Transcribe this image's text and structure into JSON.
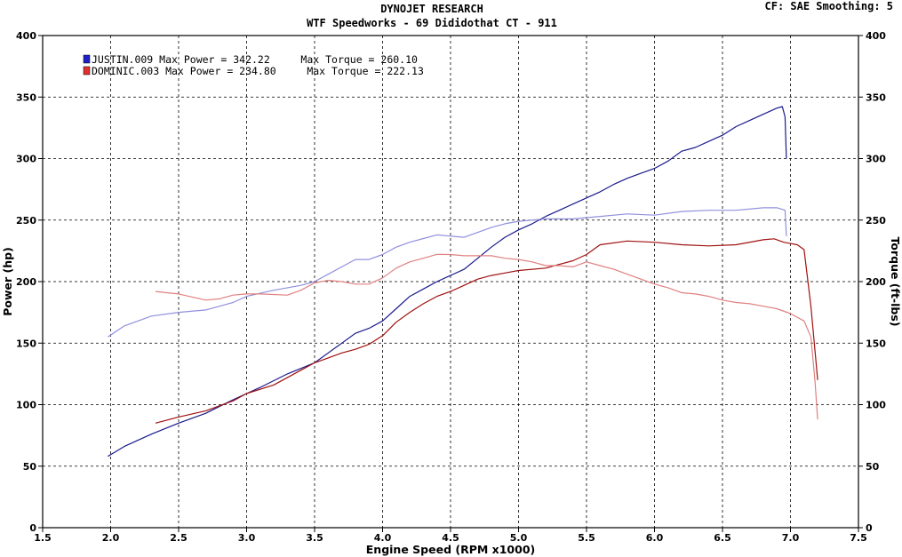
{
  "chart_data": {
    "type": "line",
    "title": "DYNOJET RESEARCH",
    "subtitle": "WTF Speedworks - 69 Dididothat CT - 911",
    "corner_info": "CF: SAE  Smoothing: 5",
    "xlabel": "Engine Speed (RPM x1000)",
    "ylabel": "Power (hp)",
    "y2label": "Torque (ft-lbs)",
    "xlim": [
      1.5,
      7.5
    ],
    "ylim": [
      0,
      400
    ],
    "y2lim": [
      0,
      400
    ],
    "x_ticks": [
      "1.5",
      "2.0",
      "2.5",
      "3.0",
      "3.5",
      "4.0",
      "4.5",
      "5.0",
      "5.5",
      "6.0",
      "6.5",
      "7.0",
      "7.5"
    ],
    "y_ticks": [
      "0",
      "50",
      "100",
      "150",
      "200",
      "250",
      "300",
      "350",
      "400"
    ],
    "grid": true,
    "legend_position": "top-left",
    "legend": [
      {
        "text": "JUSTIN.009 Max Power = 342.22     Max Torque = 260.10",
        "color": "#2020c8"
      },
      {
        "text": "DOMINIC.003 Max Power = 234.80     Max Torque = 222.13",
        "color": "#e03030"
      }
    ],
    "series": [
      {
        "run": "JUSTIN.009",
        "measure": "power",
        "color": "#1a1a8c",
        "points": [
          [
            1.98,
            58
          ],
          [
            2.1,
            66
          ],
          [
            2.3,
            76
          ],
          [
            2.5,
            85
          ],
          [
            2.7,
            93
          ],
          [
            2.9,
            104
          ],
          [
            3.0,
            109
          ],
          [
            3.1,
            114
          ],
          [
            3.3,
            125
          ],
          [
            3.5,
            134
          ],
          [
            3.6,
            142
          ],
          [
            3.7,
            150
          ],
          [
            3.8,
            158
          ],
          [
            3.9,
            162
          ],
          [
            4.0,
            168
          ],
          [
            4.1,
            178
          ],
          [
            4.2,
            188
          ],
          [
            4.3,
            194
          ],
          [
            4.4,
            200
          ],
          [
            4.5,
            205
          ],
          [
            4.6,
            210
          ],
          [
            4.7,
            219
          ],
          [
            4.8,
            228
          ],
          [
            4.9,
            236
          ],
          [
            5.0,
            242
          ],
          [
            5.1,
            247
          ],
          [
            5.2,
            253
          ],
          [
            5.3,
            258
          ],
          [
            5.4,
            263
          ],
          [
            5.5,
            268
          ],
          [
            5.6,
            273
          ],
          [
            5.7,
            279
          ],
          [
            5.8,
            284
          ],
          [
            5.9,
            288
          ],
          [
            6.0,
            292
          ],
          [
            6.1,
            298
          ],
          [
            6.2,
            306
          ],
          [
            6.3,
            309
          ],
          [
            6.4,
            314
          ],
          [
            6.5,
            319
          ],
          [
            6.6,
            326
          ],
          [
            6.7,
            331
          ],
          [
            6.8,
            336
          ],
          [
            6.9,
            341
          ],
          [
            6.94,
            342.22
          ],
          [
            6.96,
            334
          ],
          [
            6.97,
            300
          ]
        ]
      },
      {
        "run": "JUSTIN.009",
        "measure": "torque",
        "color": "#9090dd",
        "points": [
          [
            1.98,
            155
          ],
          [
            2.1,
            164
          ],
          [
            2.3,
            172
          ],
          [
            2.5,
            175
          ],
          [
            2.7,
            177
          ],
          [
            2.9,
            183
          ],
          [
            3.0,
            188
          ],
          [
            3.2,
            193
          ],
          [
            3.4,
            197
          ],
          [
            3.5,
            200
          ],
          [
            3.6,
            206
          ],
          [
            3.7,
            212
          ],
          [
            3.8,
            218
          ],
          [
            3.9,
            218
          ],
          [
            4.0,
            222
          ],
          [
            4.1,
            228
          ],
          [
            4.2,
            232
          ],
          [
            4.3,
            235
          ],
          [
            4.4,
            238
          ],
          [
            4.5,
            237
          ],
          [
            4.6,
            236
          ],
          [
            4.7,
            240
          ],
          [
            4.8,
            244
          ],
          [
            4.9,
            247
          ],
          [
            5.0,
            249
          ],
          [
            5.2,
            251
          ],
          [
            5.4,
            251
          ],
          [
            5.6,
            253
          ],
          [
            5.8,
            255
          ],
          [
            6.0,
            254
          ],
          [
            6.2,
            257
          ],
          [
            6.4,
            258
          ],
          [
            6.6,
            258
          ],
          [
            6.8,
            260
          ],
          [
            6.9,
            260.1
          ],
          [
            6.96,
            258
          ],
          [
            6.97,
            237
          ]
        ]
      },
      {
        "run": "DOMINIC.003",
        "measure": "power",
        "color": "#a01010",
        "points": [
          [
            2.33,
            85
          ],
          [
            2.5,
            90
          ],
          [
            2.7,
            95
          ],
          [
            2.9,
            103
          ],
          [
            3.0,
            109
          ],
          [
            3.2,
            116
          ],
          [
            3.4,
            128
          ],
          [
            3.5,
            134
          ],
          [
            3.6,
            138
          ],
          [
            3.7,
            142
          ],
          [
            3.8,
            145
          ],
          [
            3.9,
            149
          ],
          [
            4.0,
            156
          ],
          [
            4.1,
            167
          ],
          [
            4.2,
            175
          ],
          [
            4.3,
            182
          ],
          [
            4.4,
            188
          ],
          [
            4.5,
            192
          ],
          [
            4.6,
            197
          ],
          [
            4.7,
            202
          ],
          [
            4.8,
            205
          ],
          [
            4.9,
            207
          ],
          [
            5.0,
            209
          ],
          [
            5.2,
            211
          ],
          [
            5.3,
            214
          ],
          [
            5.4,
            217
          ],
          [
            5.5,
            222
          ],
          [
            5.6,
            230
          ],
          [
            5.8,
            233
          ],
          [
            6.0,
            232
          ],
          [
            6.2,
            230
          ],
          [
            6.4,
            229
          ],
          [
            6.6,
            230
          ],
          [
            6.8,
            234
          ],
          [
            6.88,
            234.8
          ],
          [
            6.95,
            232
          ],
          [
            7.05,
            230
          ],
          [
            7.1,
            226
          ],
          [
            7.15,
            180
          ],
          [
            7.2,
            120
          ]
        ]
      },
      {
        "run": "DOMINIC.003",
        "measure": "torque",
        "color": "#e08080",
        "points": [
          [
            2.33,
            192
          ],
          [
            2.5,
            190
          ],
          [
            2.7,
            185
          ],
          [
            2.8,
            186
          ],
          [
            2.9,
            189
          ],
          [
            3.0,
            190
          ],
          [
            3.1,
            190
          ],
          [
            3.3,
            189
          ],
          [
            3.4,
            193
          ],
          [
            3.5,
            199
          ],
          [
            3.6,
            201
          ],
          [
            3.7,
            200
          ],
          [
            3.8,
            198
          ],
          [
            3.9,
            198
          ],
          [
            4.0,
            203
          ],
          [
            4.1,
            211
          ],
          [
            4.2,
            216
          ],
          [
            4.3,
            219
          ],
          [
            4.4,
            222.13
          ],
          [
            4.5,
            222
          ],
          [
            4.6,
            221
          ],
          [
            4.8,
            221
          ],
          [
            4.9,
            219
          ],
          [
            5.0,
            218
          ],
          [
            5.1,
            216
          ],
          [
            5.2,
            213
          ],
          [
            5.3,
            213
          ],
          [
            5.4,
            212
          ],
          [
            5.5,
            216
          ],
          [
            5.6,
            213
          ],
          [
            5.7,
            210
          ],
          [
            5.8,
            206
          ],
          [
            5.9,
            202
          ],
          [
            6.0,
            198
          ],
          [
            6.1,
            195
          ],
          [
            6.2,
            191
          ],
          [
            6.3,
            190
          ],
          [
            6.4,
            188
          ],
          [
            6.5,
            185
          ],
          [
            6.6,
            183
          ],
          [
            6.7,
            182
          ],
          [
            6.8,
            180
          ],
          [
            6.9,
            178
          ],
          [
            7.0,
            174
          ],
          [
            7.1,
            168
          ],
          [
            7.15,
            155
          ],
          [
            7.18,
            120
          ],
          [
            7.2,
            88
          ]
        ]
      }
    ]
  }
}
